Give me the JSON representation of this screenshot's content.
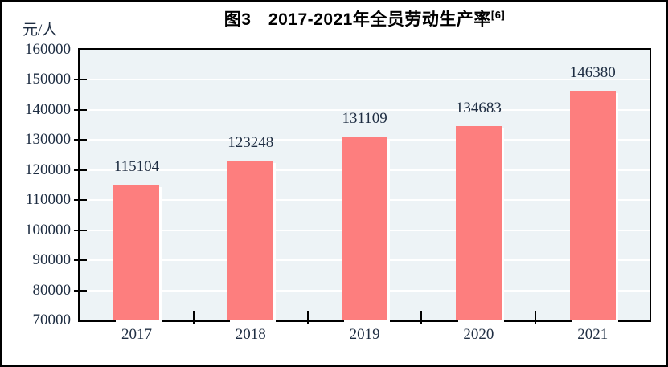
{
  "title": {
    "text": "图3　2017-2021年全员劳动生产率",
    "superscript": "[6]"
  },
  "chart_data": {
    "type": "bar",
    "title": "图3 2017-2021年全员劳动生产率[6]",
    "ylabel_unit": "元/人",
    "categories": [
      "2017",
      "2018",
      "2019",
      "2020",
      "2021"
    ],
    "values": [
      115104,
      123248,
      131109,
      134683,
      146380
    ],
    "data_labels": [
      "115104",
      "123248",
      "131109",
      "134683",
      "146380"
    ],
    "ylim": [
      70000,
      160000
    ],
    "ytick_interval": 10000,
    "ytick_labels": [
      "70000",
      "80000",
      "90000",
      "100000",
      "110000",
      "120000",
      "130000",
      "140000",
      "150000",
      "160000"
    ],
    "grid": true,
    "legend": "none",
    "colors": {
      "bar": "#fd7e7e",
      "bar_shadow": "#ffffff",
      "plot_background": "#edf3f6",
      "gridline": "#ffffff",
      "axis_text": "#1e2d42",
      "title_text": "#000000",
      "border": "#000000",
      "page_background": "#ffffff"
    }
  }
}
